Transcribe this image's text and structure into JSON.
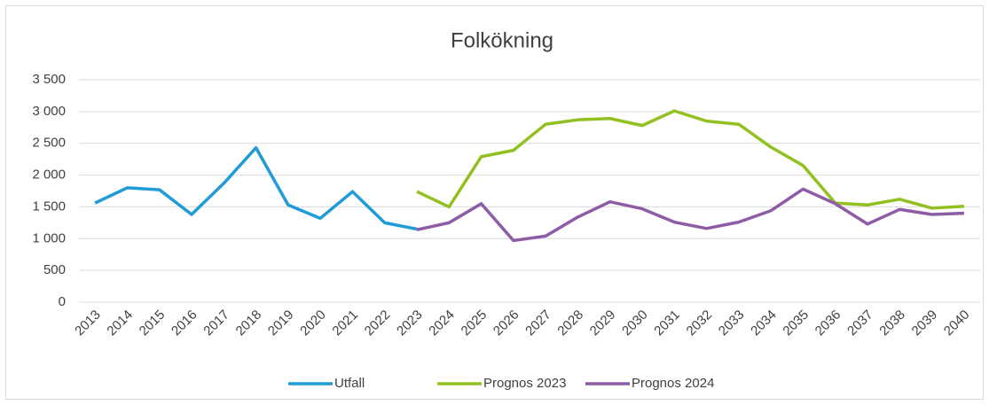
{
  "chart_data": {
    "type": "line",
    "title": "Folkökning",
    "categories": [
      "2013",
      "2014",
      "2015",
      "2016",
      "2017",
      "2018",
      "2019",
      "2020",
      "2021",
      "2022",
      "2023",
      "2024",
      "2025",
      "2026",
      "2027",
      "2028",
      "2029",
      "2030",
      "2031",
      "2032",
      "2033",
      "2034",
      "2035",
      "2036",
      "2037",
      "2038",
      "2039",
      "2040"
    ],
    "series": [
      {
        "name": "Utfall",
        "color": "#1f9bd7",
        "values": [
          1560,
          1800,
          1770,
          1380,
          1870,
          2430,
          1530,
          1320,
          1740,
          1250,
          1150,
          null,
          null,
          null,
          null,
          null,
          null,
          null,
          null,
          null,
          null,
          null,
          null,
          null,
          null,
          null,
          null,
          null
        ]
      },
      {
        "name": "Prognos 2023",
        "color": "#92c020",
        "values": [
          null,
          null,
          null,
          null,
          null,
          null,
          null,
          null,
          null,
          null,
          1740,
          1500,
          2290,
          2390,
          2800,
          2870,
          2890,
          2780,
          3010,
          2850,
          2800,
          2440,
          2150,
          1560,
          1530,
          1620,
          1480,
          1510
        ]
      },
      {
        "name": "Prognos 2024",
        "color": "#8e5ba6",
        "values": [
          null,
          null,
          null,
          null,
          null,
          null,
          null,
          null,
          null,
          null,
          1140,
          1250,
          1550,
          970,
          1040,
          1340,
          1580,
          1470,
          1260,
          1160,
          1260,
          1440,
          1780,
          1550,
          1230,
          1460,
          1380,
          1400
        ]
      }
    ],
    "ylim": [
      0,
      3500
    ],
    "yticks": [
      0,
      500,
      {
        "value": 1000,
        "label": "1 000"
      },
      {
        "value": 1500,
        "label": "1 500"
      },
      {
        "value": 2000,
        "label": "2 000"
      },
      {
        "value": 2500,
        "label": "2 500"
      },
      {
        "value": 3000,
        "label": "3 000"
      },
      {
        "value": 3500,
        "label": "3 500"
      }
    ],
    "grid": true,
    "legend": "bottom"
  }
}
